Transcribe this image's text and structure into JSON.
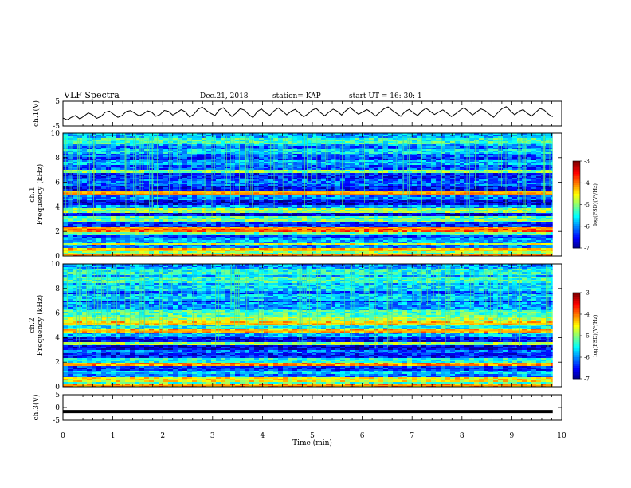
{
  "header": {
    "title": "VLF Spectra",
    "date": "Dec.21, 2018",
    "station": "station= KAP",
    "start": "start  UT =   16: 30: 1"
  },
  "chart_data": [
    {
      "type": "line",
      "ylabel": "ch.1(V)",
      "ylim": [
        -5,
        5
      ],
      "yticks": [
        "5",
        "-5"
      ],
      "xlim": [
        0,
        10
      ],
      "x_end": 9.82,
      "series": [
        {
          "values": [
            -1.8,
            -2.5,
            -1.5,
            -0.8,
            -2.2,
            -1.0,
            0.3,
            -0.5,
            -1.9,
            -1.2,
            0.5,
            1.0,
            -0.3,
            -1.5,
            -0.8,
            0.8,
            1.2,
            0.2,
            -0.9,
            -0.2,
            1.1,
            0.6,
            -1.1,
            -0.4,
            1.3,
            0.9,
            -0.6,
            0.4,
            1.6,
            0.7,
            -1.4,
            -0.3,
            1.8,
            2.6,
            1.2,
            0.1,
            -0.8,
            1.5,
            2.4,
            0.6,
            -1.2,
            0.2,
            2.0,
            1.4,
            -0.4,
            -1.6,
            0.8,
            1.9,
            0.3,
            -0.7,
            1.1,
            2.3,
            1.0,
            -0.5,
            0.9,
            1.7,
            0.2,
            -1.3,
            -0.2,
            1.4,
            2.1,
            0.4,
            -0.9,
            0.6,
            1.8,
            0.9,
            -0.6,
            1.2,
            2.5,
            1.1,
            -0.3,
            0.7,
            1.6,
            0.5,
            -1.0,
            0.4,
            1.9,
            2.7,
            1.3,
            0.1,
            -1.1,
            0.8,
            1.7,
            0.3,
            -0.8,
            1.0,
            2.2,
            0.9,
            -0.4,
            0.6,
            1.5,
            0.2,
            -1.2,
            -0.1,
            1.3,
            2.4,
            1.0,
            -0.6,
            0.7,
            1.9,
            1.2,
            -0.2,
            -1.5,
            0.4,
            2.0,
            2.8,
            1.1,
            -0.5,
            0.9,
            1.6,
            0.1,
            -1.0,
            0.5,
            2.1,
            1.4,
            -0.3,
            -1.3
          ]
        }
      ]
    },
    {
      "type": "heatmap",
      "ylabel": "ch.1\nFrequency (kHz)",
      "ylim": [
        0,
        10
      ],
      "yticks": [
        "0",
        "2",
        "4",
        "6",
        "8",
        "10"
      ],
      "xlim": [
        0,
        10
      ],
      "x_end": 9.82,
      "colorbar": {
        "label": "log(PSD)(V²/Hz)",
        "range": [
          -7,
          -3
        ],
        "ticks": [
          "-3",
          "-4",
          "-5",
          "-6",
          "-7"
        ]
      },
      "bands": [
        {
          "f": 9.3,
          "v": -5.3
        },
        {
          "f": 8.5,
          "v": -5.6
        },
        {
          "f": 7.6,
          "v": -5.8
        },
        {
          "f": 7.1,
          "v": -6.2
        },
        {
          "f": 6.9,
          "v": -5.0
        },
        {
          "f": 6.5,
          "v": -6.4
        },
        {
          "f": 6.0,
          "v": -6.1
        },
        {
          "f": 5.55,
          "v": -6.5
        },
        {
          "f": 5.2,
          "v": -4.2
        },
        {
          "f": 5.05,
          "v": -4.0
        },
        {
          "f": 4.8,
          "v": -6.0
        },
        {
          "f": 4.3,
          "v": -6.6
        },
        {
          "f": 4.0,
          "v": -5.9
        },
        {
          "f": 3.7,
          "v": -4.9
        },
        {
          "f": 3.4,
          "v": -6.6
        },
        {
          "f": 3.05,
          "v": -5.2
        },
        {
          "f": 2.85,
          "v": -5.0
        },
        {
          "f": 2.5,
          "v": -6.3
        },
        {
          "f": 2.25,
          "v": -4.1
        },
        {
          "f": 2.1,
          "v": -3.9
        },
        {
          "f": 1.9,
          "v": -5.1
        },
        {
          "f": 1.6,
          "v": -6.2
        },
        {
          "f": 1.25,
          "v": -5.8
        },
        {
          "f": 0.95,
          "v": -4.6
        },
        {
          "f": 0.75,
          "v": -6.0
        },
        {
          "f": 0.45,
          "v": -4.3
        },
        {
          "f": 0.25,
          "v": -5.0
        },
        {
          "f": 0.1,
          "v": -4.0
        }
      ]
    },
    {
      "type": "heatmap",
      "ylabel": "ch.2\nFrequency (kHz)",
      "ylim": [
        0,
        10
      ],
      "yticks": [
        "0",
        "2",
        "4",
        "6",
        "8",
        "10"
      ],
      "xlim": [
        0,
        10
      ],
      "x_end": 9.82,
      "colorbar": {
        "label": "log(PSD)(V²/Hz)",
        "range": [
          -7,
          -3
        ],
        "ticks": [
          "-3",
          "-4",
          "-5",
          "-6",
          "-7"
        ]
      },
      "bands": [
        {
          "f": 9.4,
          "v": -5.4
        },
        {
          "f": 8.7,
          "v": -5.3
        },
        {
          "f": 8.0,
          "v": -5.6
        },
        {
          "f": 7.3,
          "v": -5.7
        },
        {
          "f": 6.6,
          "v": -5.9
        },
        {
          "f": 6.0,
          "v": -5.2
        },
        {
          "f": 5.5,
          "v": -4.8
        },
        {
          "f": 5.15,
          "v": -4.3
        },
        {
          "f": 4.9,
          "v": -5.5
        },
        {
          "f": 4.55,
          "v": -4.2
        },
        {
          "f": 4.2,
          "v": -5.8
        },
        {
          "f": 3.85,
          "v": -6.5
        },
        {
          "f": 3.5,
          "v": -4.9
        },
        {
          "f": 3.2,
          "v": -6.6
        },
        {
          "f": 2.9,
          "v": -6.1
        },
        {
          "f": 2.5,
          "v": -6.4
        },
        {
          "f": 2.15,
          "v": -5.4
        },
        {
          "f": 1.85,
          "v": -4.1
        },
        {
          "f": 1.5,
          "v": -6.3
        },
        {
          "f": 1.2,
          "v": -5.7
        },
        {
          "f": 0.9,
          "v": -6.0
        },
        {
          "f": 0.55,
          "v": -4.5
        },
        {
          "f": 0.3,
          "v": -5.2
        },
        {
          "f": 0.1,
          "v": -4.1
        }
      ]
    },
    {
      "type": "line",
      "ylabel": "ch.3(V)",
      "ylim": [
        -5,
        5
      ],
      "yticks": [
        "5",
        "0",
        "-5"
      ],
      "xlim": [
        0,
        10
      ],
      "x_end": 9.82,
      "xlabel": "Time (min)",
      "xticks": [
        "0",
        "1",
        "2",
        "3",
        "4",
        "5",
        "6",
        "7",
        "8",
        "9",
        "10"
      ],
      "series": [
        {
          "values": [
            -1.6,
            -1.6
          ]
        }
      ]
    }
  ]
}
